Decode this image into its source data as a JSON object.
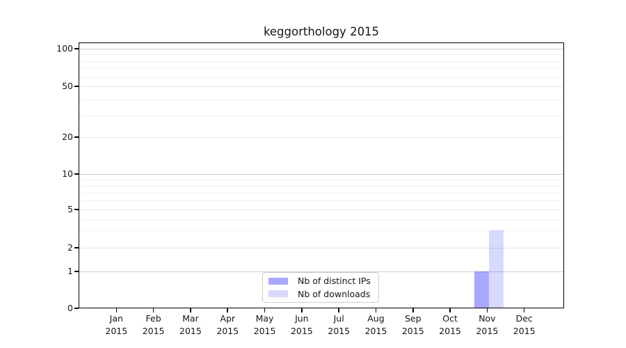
{
  "chart_data": {
    "type": "bar",
    "title": "keggorthology 2015",
    "categories": [
      "Jan 2015",
      "Feb 2015",
      "Mar 2015",
      "Apr 2015",
      "May 2015",
      "Jun 2015",
      "Jul 2015",
      "Aug 2015",
      "Sep 2015",
      "Oct 2015",
      "Nov 2015",
      "Dec 2015"
    ],
    "series": [
      {
        "name": "Nb of distinct IPs",
        "color": "rgba(0,0,255,0.34)",
        "color_hex_on_white": "#a8a8f8",
        "values": [
          0,
          0,
          0,
          0,
          0,
          0,
          0,
          0,
          0,
          0,
          1,
          0
        ]
      },
      {
        "name": "Nb of downloads",
        "color": "rgba(0,0,255,0.15)",
        "color_hex_on_white": "#d8d8fa",
        "values": [
          0,
          0,
          0,
          0,
          0,
          0,
          0,
          0,
          0,
          0,
          3,
          0
        ]
      }
    ],
    "xlabel": "",
    "ylabel": "",
    "y_axis": {
      "scale": "symlog-like",
      "tick_labels": [
        0,
        1,
        2,
        5,
        10,
        20,
        50,
        100
      ],
      "range": [
        0,
        100
      ]
    },
    "grid": "horizontal",
    "legend_position": "lower center"
  }
}
